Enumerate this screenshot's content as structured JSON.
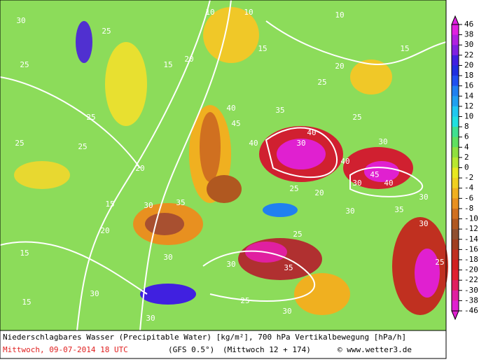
{
  "colorbar": {
    "ticks": [
      46,
      38,
      30,
      22,
      20,
      18,
      16,
      14,
      12,
      10,
      8,
      6,
      4,
      2,
      0,
      -2,
      -4,
      -6,
      -8,
      -10,
      -12,
      -14,
      -16,
      -18,
      -20,
      -22,
      -30,
      -38,
      -46
    ],
    "colors": [
      "#e020e0",
      "#b020e0",
      "#8020e0",
      "#4020e0",
      "#2030e0",
      "#2050f0",
      "#2080f0",
      "#20a0f0",
      "#20c8f0",
      "#20e0e0",
      "#40e090",
      "#60e060",
      "#90e040",
      "#b8e830",
      "#e8e820",
      "#f0d020",
      "#f0b020",
      "#e89020",
      "#d07020",
      "#b05820",
      "#905030",
      "#a04020",
      "#c03020",
      "#d02020",
      "#e02030",
      "#e02060",
      "#e020a0",
      "#e020d0"
    ]
  },
  "contour_labels": [
    "30",
    "25",
    "10",
    "10",
    "10",
    "15",
    "20",
    "25",
    "25",
    "25",
    "25",
    "20",
    "15",
    "20",
    "30",
    "35",
    "40",
    "45",
    "40",
    "35",
    "30",
    "40",
    "40",
    "45",
    "40",
    "30",
    "25",
    "20",
    "30",
    "35",
    "25",
    "35",
    "30",
    "30",
    "30",
    "15",
    "15",
    "30",
    "25",
    "30",
    "15",
    "15",
    "20",
    "25",
    "25",
    "30",
    "30",
    "30",
    "25"
  ],
  "footer": {
    "description": "Niederschlagbares Wasser (Precipitable Water) [kg/m²], 700 hPa Vertikalbewegung [hPa/h]",
    "date": "Mittwoch, 09-07-2014  18 UTC",
    "model": "(GFS 0.5°)",
    "run": "(Mittwoch 12 + 174)",
    "credit": "© www.wetter3.de"
  }
}
